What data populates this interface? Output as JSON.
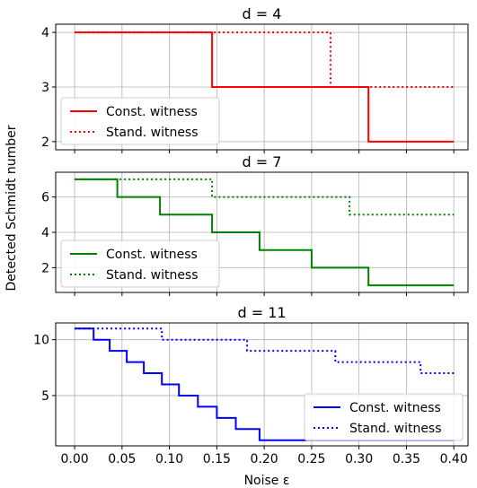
{
  "shared": {
    "ylabel": "Detected Schmidt number",
    "xlabel": "Noise ε",
    "xlim": [
      -0.02,
      0.415
    ],
    "xticks": [
      0.0,
      0.05,
      0.1,
      0.15,
      0.2,
      0.25,
      0.3,
      0.35,
      0.4
    ],
    "xtick_labels": [
      "0.00",
      "0.05",
      "0.10",
      "0.15",
      "0.20",
      "0.25",
      "0.30",
      "0.35",
      "0.40"
    ]
  },
  "chart_data": [
    {
      "type": "line",
      "title": "d = 4",
      "ylim": [
        1.85,
        4.15
      ],
      "yticks": [
        2,
        3,
        4
      ],
      "grid": true,
      "legend": {
        "placement": "lower-left",
        "entries": [
          "Const. witness",
          "Stand. witness"
        ]
      },
      "color": "#ff0000",
      "series": [
        {
          "name": "Const. witness",
          "style": "solid",
          "x": [
            0.0,
            0.145,
            0.145,
            0.31,
            0.31,
            0.4
          ],
          "y": [
            4,
            4,
            3,
            3,
            2,
            2
          ]
        },
        {
          "name": "Stand. witness",
          "style": "dotted",
          "x": [
            0.0,
            0.27,
            0.27,
            0.4
          ],
          "y": [
            4,
            4,
            3,
            3
          ]
        }
      ]
    },
    {
      "type": "line",
      "title": "d = 7",
      "ylim": [
        0.6,
        7.4
      ],
      "yticks": [
        2,
        4,
        6
      ],
      "grid": true,
      "legend": {
        "placement": "lower-left",
        "entries": [
          "Const. witness",
          "Stand. witness"
        ]
      },
      "color": "#008000",
      "series": [
        {
          "name": "Const. witness",
          "style": "solid",
          "x": [
            0.0,
            0.045,
            0.045,
            0.09,
            0.09,
            0.145,
            0.145,
            0.195,
            0.195,
            0.25,
            0.25,
            0.31,
            0.31,
            0.4
          ],
          "y": [
            7,
            7,
            6,
            6,
            5,
            5,
            4,
            4,
            3,
            3,
            2,
            2,
            1,
            1
          ]
        },
        {
          "name": "Stand. witness",
          "style": "dotted",
          "x": [
            0.0,
            0.145,
            0.145,
            0.29,
            0.29,
            0.4
          ],
          "y": [
            7,
            7,
            6,
            6,
            5,
            5
          ]
        }
      ]
    },
    {
      "type": "line",
      "title": "d = 11",
      "ylim": [
        0.5,
        11.5
      ],
      "yticks": [
        5,
        10
      ],
      "grid": true,
      "legend": {
        "placement": "lower-right",
        "entries": [
          "Const. witness",
          "Stand. witness"
        ]
      },
      "color": "#0000ff",
      "series": [
        {
          "name": "Const. witness",
          "style": "solid",
          "x": [
            0.0,
            0.02,
            0.02,
            0.037,
            0.037,
            0.055,
            0.055,
            0.073,
            0.073,
            0.092,
            0.092,
            0.11,
            0.11,
            0.13,
            0.13,
            0.15,
            0.15,
            0.17,
            0.17,
            0.195,
            0.195,
            0.4
          ],
          "y": [
            11,
            11,
            10,
            10,
            9,
            9,
            8,
            8,
            7,
            7,
            6,
            6,
            5,
            5,
            4,
            4,
            3,
            3,
            2,
            2,
            1,
            1
          ]
        },
        {
          "name": "Stand. witness",
          "style": "dotted",
          "x": [
            0.0,
            0.092,
            0.092,
            0.182,
            0.182,
            0.275,
            0.275,
            0.365,
            0.365,
            0.4
          ],
          "y": [
            11,
            11,
            10,
            10,
            9,
            9,
            8,
            8,
            7,
            7
          ]
        }
      ]
    }
  ]
}
